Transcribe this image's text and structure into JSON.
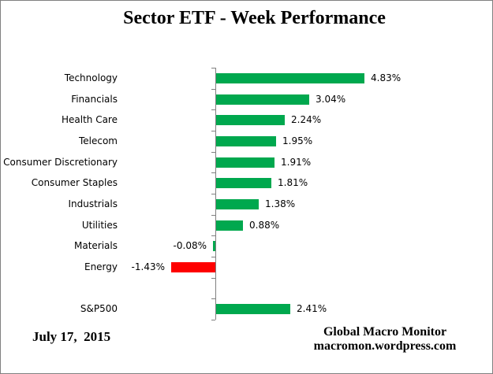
{
  "title": "Sector ETF - Week Performance",
  "chart_data": {
    "type": "bar",
    "orientation": "horizontal",
    "title": "Sector ETF - Week Performance",
    "xlabel": "",
    "ylabel": "",
    "xlim": [
      -2.0,
      5.5
    ],
    "grid": false,
    "legend": null,
    "value_unit": "percent",
    "categories": [
      "Technology",
      "Financials",
      "Health Care",
      "Telecom",
      "Consumer Discretionary",
      "Consumer Staples",
      "Industrials",
      "Utilities",
      "Materials",
      "Energy",
      "",
      "S&P500"
    ],
    "values": [
      4.83,
      3.04,
      2.24,
      1.95,
      1.91,
      1.81,
      1.38,
      0.88,
      -0.08,
      -1.43,
      null,
      2.41
    ],
    "data_labels": [
      "4.83%",
      "3.04%",
      "2.24%",
      "1.95%",
      "1.91%",
      "1.81%",
      "1.38%",
      "0.88%",
      "-0.08%",
      "-1.43%",
      "",
      "2.41%"
    ],
    "bar_colors": [
      "#00A84E",
      "#00A84E",
      "#00A84E",
      "#00A84E",
      "#00A84E",
      "#00A84E",
      "#00A84E",
      "#00A84E",
      "#00A84E",
      "#FE0000",
      null,
      "#00A84E"
    ]
  },
  "footer": {
    "date": "July 17,  2015",
    "brand_line1": "Global Macro Monitor",
    "brand_line2": "macromon.wordpress.com"
  },
  "colors": {
    "positive_bar": "#00A84E",
    "negative_bar": "#FE0000",
    "axis": "#808080",
    "frame_border": "#808080",
    "background": "#FFFFFF",
    "text": "#000000"
  }
}
